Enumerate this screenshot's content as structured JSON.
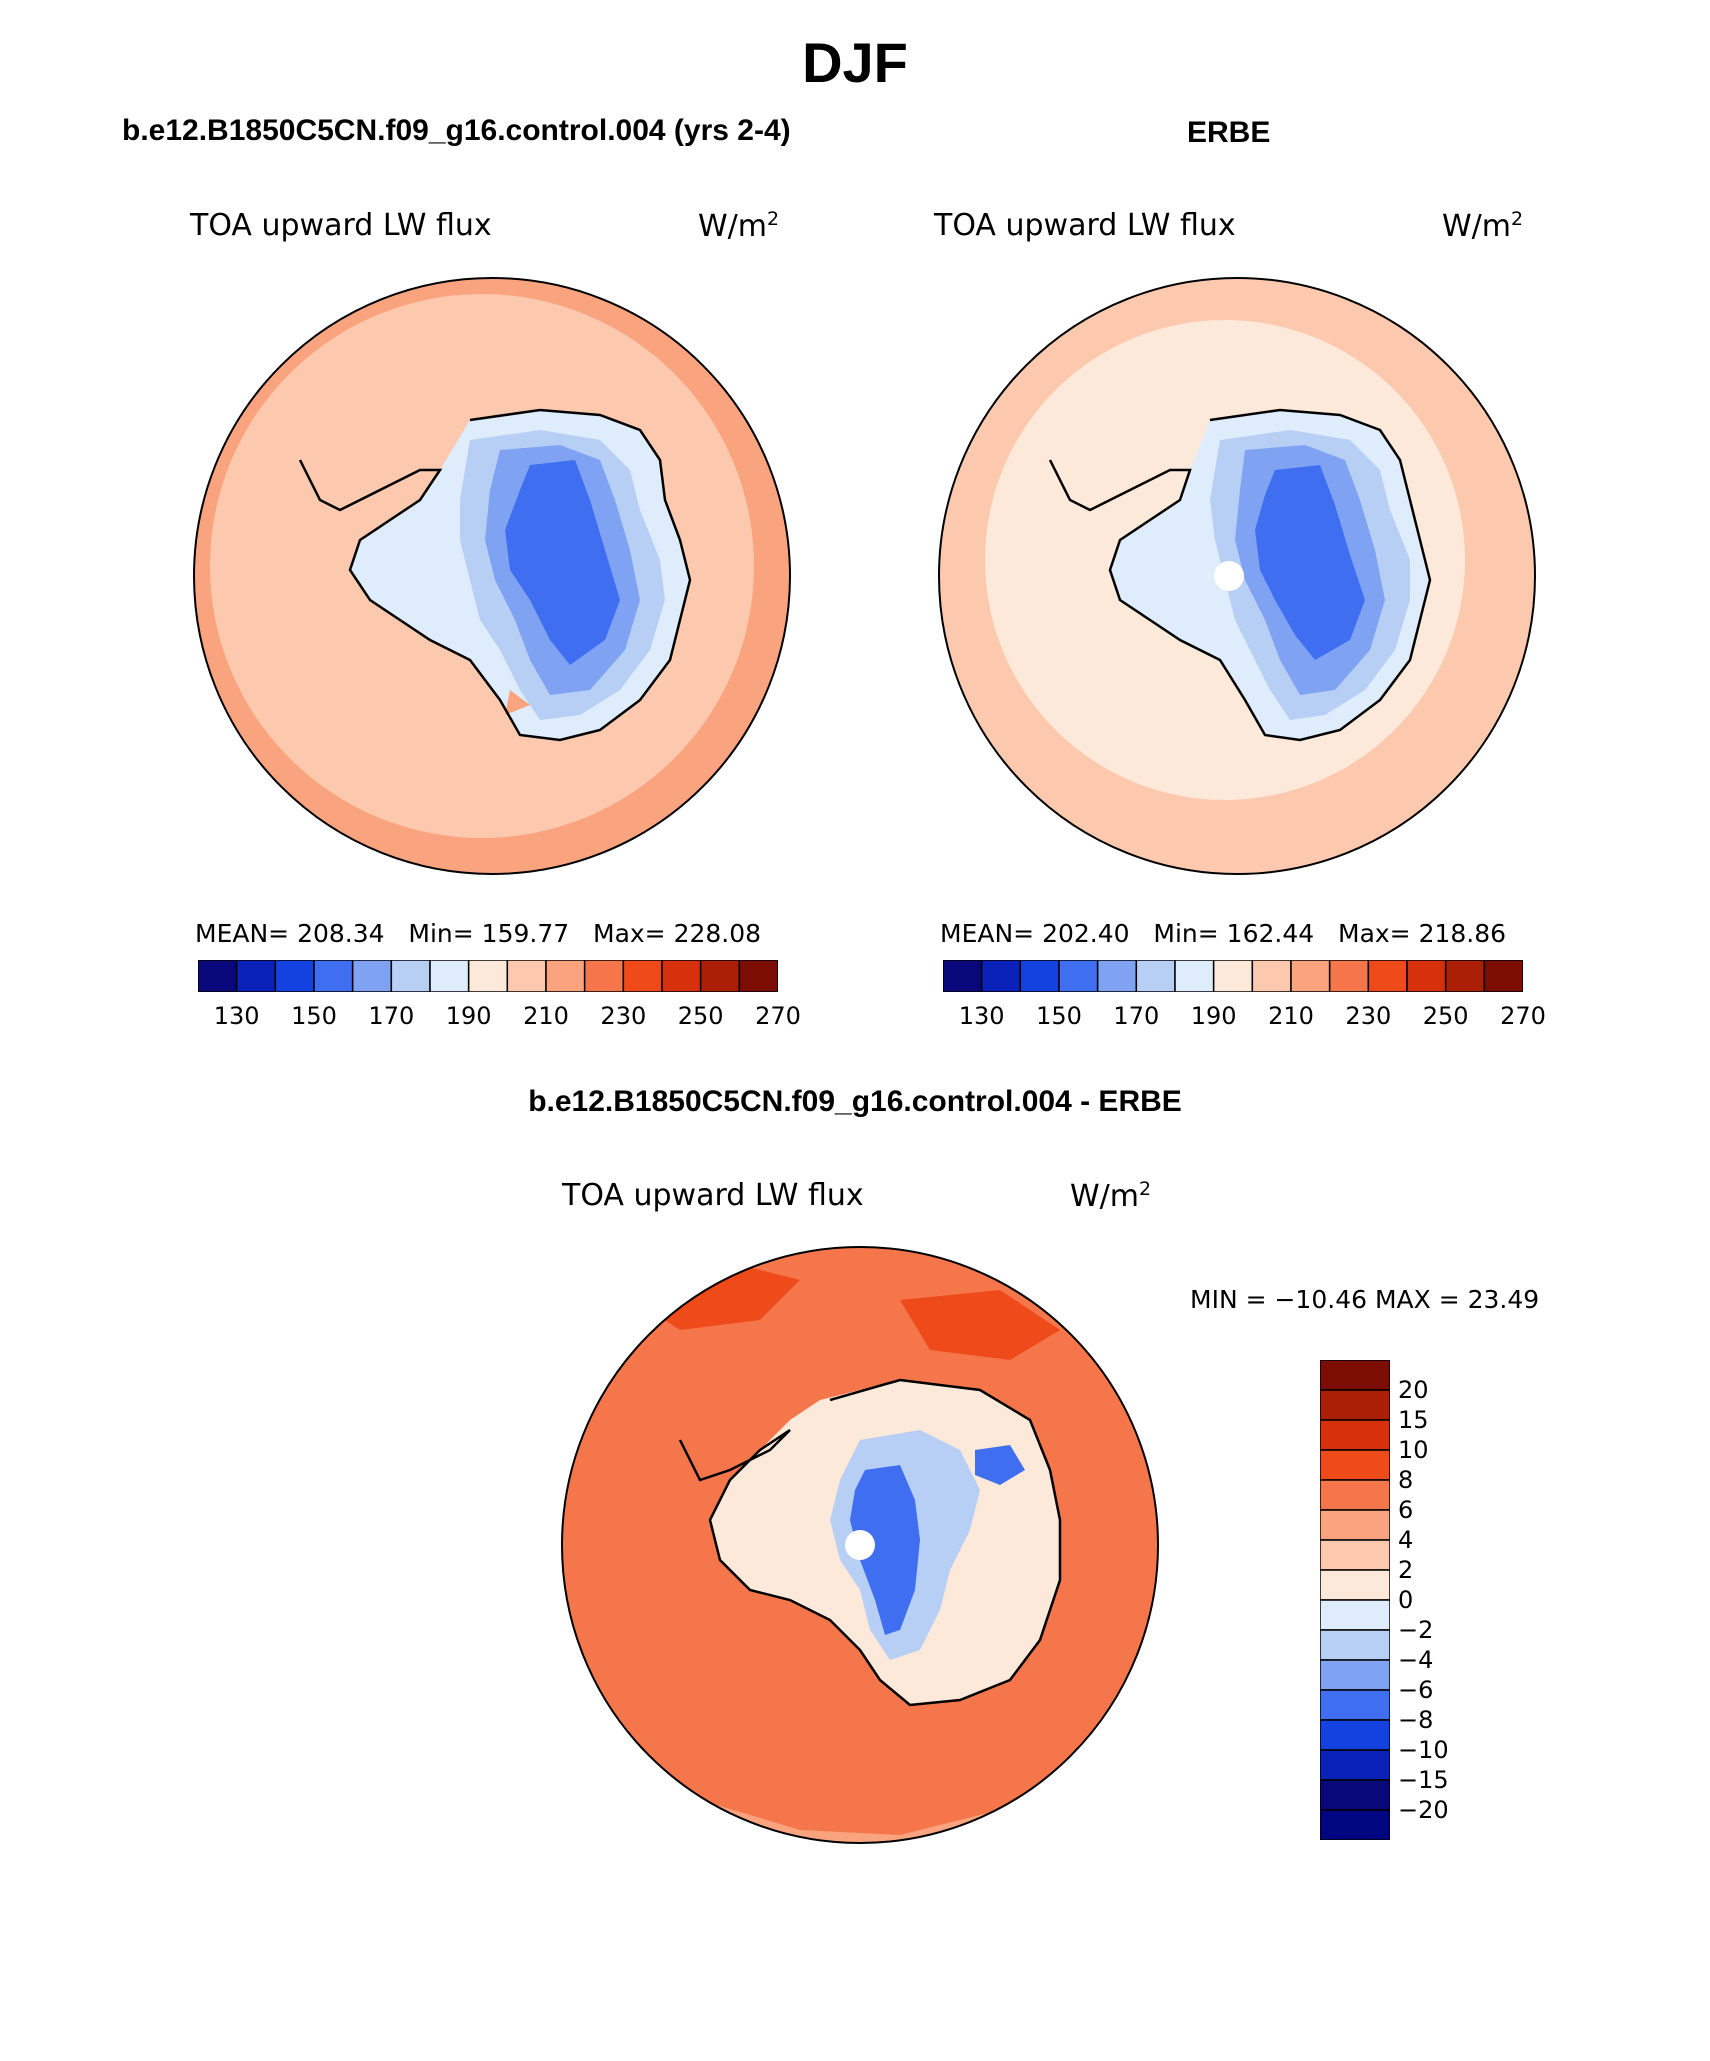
{
  "title": "DJF",
  "panels": [
    {
      "case_title": "b.e12.B1850C5CN.f09_g16.control.004 (yrs 2-4)",
      "variable": "TOA upward LW flux",
      "units": "W/m",
      "units_sup": "2",
      "mean_label": "MEAN=",
      "mean": "208.34",
      "min_label": "Min=",
      "min": "159.77",
      "max_label": "Max=",
      "max": "228.08"
    },
    {
      "case_title": "ERBE",
      "variable": "TOA upward LW flux",
      "units": "W/m",
      "units_sup": "2",
      "mean_label": "MEAN=",
      "mean": "202.40",
      "min_label": "Min=",
      "min": "162.44",
      "max_label": "Max=",
      "max": "218.86"
    }
  ],
  "abs_colorbar": {
    "colors": [
      "#08087a",
      "#0a22b8",
      "#1442e0",
      "#3f6ff0",
      "#7fa3f2",
      "#b8cff5",
      "#deecfb",
      "#fde9da",
      "#fcc9ae",
      "#f9a47f",
      "#f4764a",
      "#ee4a1a",
      "#d6300c",
      "#ab1f06",
      "#7c0d02"
    ],
    "tick_labels": [
      "130",
      "150",
      "170",
      "190",
      "210",
      "230",
      "250",
      "270"
    ]
  },
  "diff_panel": {
    "case_title": "b.e12.B1850C5CN.f09_g16.control.004 - ERBE",
    "variable": "TOA upward LW flux",
    "units": "W/m",
    "units_sup": "2",
    "minmax_text": "MIN = −10.46 MAX =   23.49",
    "colorbar_colors": [
      "#7c0d02",
      "#ab1f06",
      "#d6300c",
      "#ee4a1a",
      "#f4764a",
      "#f9a47f",
      "#fcc9ae",
      "#fde9da",
      "#deecfb",
      "#b8cff5",
      "#7fa3f2",
      "#3f6ff0",
      "#1442e0",
      "#0a22b8",
      "#08087a",
      "#000680"
    ],
    "tick_labels": [
      "20",
      "15",
      "10",
      "8",
      "6",
      "4",
      "2",
      "0",
      "−2",
      "−4",
      "−6",
      "−8",
      "−10",
      "−15",
      "−20"
    ]
  },
  "chart_data": [
    {
      "type": "heatmap",
      "projection": "south polar stereographic",
      "variable": "TOA upward LW flux",
      "units": "W/m2",
      "mean": 208.34,
      "min": 159.77,
      "max": 228.08,
      "contour_levels": [
        130,
        140,
        150,
        160,
        170,
        180,
        190,
        200,
        210,
        220,
        230,
        240,
        250,
        260,
        270
      ]
    },
    {
      "type": "heatmap",
      "projection": "south polar stereographic",
      "variable": "TOA upward LW flux",
      "units": "W/m2",
      "mean": 202.4,
      "min": 162.44,
      "max": 218.86,
      "contour_levels": [
        130,
        140,
        150,
        160,
        170,
        180,
        190,
        200,
        210,
        220,
        230,
        240,
        250,
        260,
        270
      ]
    },
    {
      "type": "heatmap",
      "projection": "south polar stereographic",
      "variable": "TOA upward LW flux",
      "units": "W/m2",
      "min": -10.46,
      "max": 23.49,
      "contour_levels": [
        -20,
        -15,
        -10,
        -8,
        -6,
        -4,
        -2,
        0,
        2,
        4,
        6,
        8,
        10,
        15,
        20
      ]
    }
  ]
}
